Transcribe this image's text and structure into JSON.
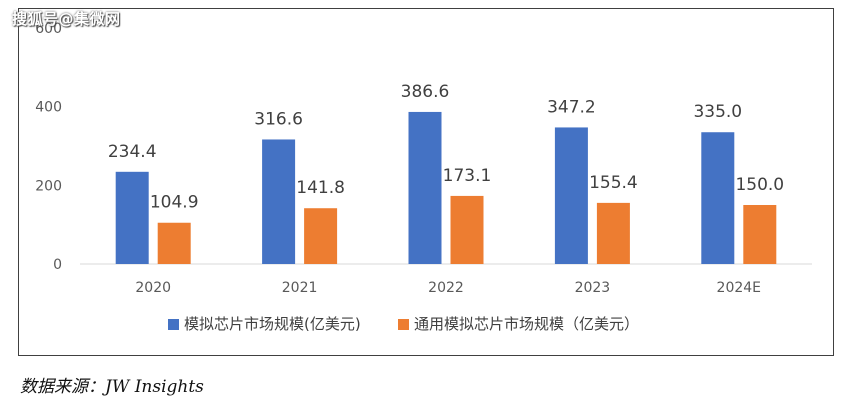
{
  "watermark": "搜狐号@集微网",
  "source": "数据来源：JW Insights",
  "colors": {
    "series1": "#4472C4",
    "series2": "#ED7D31"
  },
  "chart_data": {
    "type": "bar",
    "categories": [
      "2020",
      "2021",
      "2022",
      "2023",
      "2024E"
    ],
    "series": [
      {
        "name": "模拟芯片市场规模(亿美元)",
        "values": [
          234.4,
          316.6,
          386.6,
          347.2,
          335.0
        ],
        "labels": [
          "234.4",
          "316.6",
          "386.6",
          "347.2",
          "335.0"
        ]
      },
      {
        "name": "通用模拟芯片市场规模（亿美元）",
        "values": [
          104.9,
          141.8,
          173.1,
          155.4,
          150.0
        ],
        "labels": [
          "104.9",
          "141.8",
          "173.1",
          "155.4",
          "150.0"
        ]
      }
    ],
    "yticks": [
      "0",
      "200",
      "400",
      "600"
    ],
    "ylim": [
      0,
      600
    ],
    "grid": false,
    "legend_position": "bottom"
  }
}
